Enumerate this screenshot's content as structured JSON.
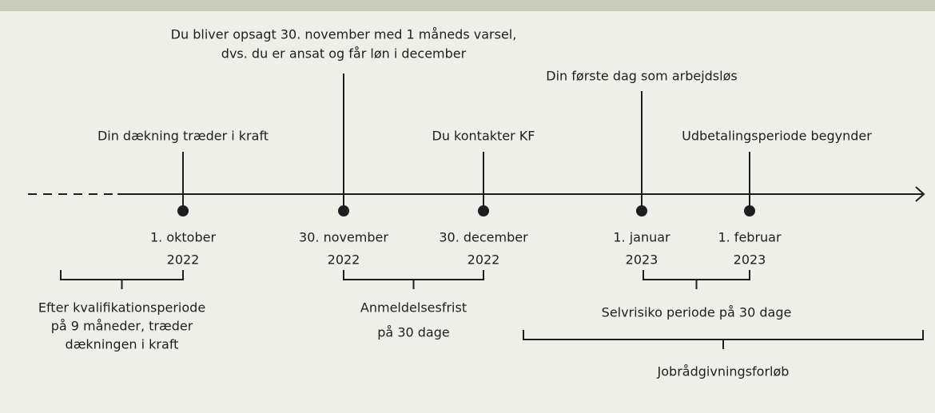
{
  "events": [
    {
      "label": [
        "Din dækning træder i kraft"
      ],
      "date": [
        "1. oktober",
        "2022"
      ]
    },
    {
      "label": [
        "Du bliver opsagt 30. november med 1 måneds varsel,",
        "dvs. du er ansat og får løn i december"
      ],
      "date": [
        "30. november",
        "2022"
      ]
    },
    {
      "label": [
        "Du kontakter KF"
      ],
      "date": [
        "30. december",
        "2022"
      ]
    },
    {
      "label": [
        "Din første dag som arbejdsløs"
      ],
      "date": [
        "1. januar",
        "2023"
      ]
    },
    {
      "label": [
        "Udbetalingsperiode begynder"
      ],
      "date": [
        "1. februar",
        "2023"
      ]
    }
  ],
  "periods": [
    {
      "label": [
        "Efter kvalifikationsperiode",
        "på 9 måneder, træder",
        "dækningen i kraft"
      ]
    },
    {
      "label": [
        "Anmeldelsesfrist",
        "på 30 dage"
      ]
    },
    {
      "label": [
        "Selvrisiko periode på 30 dage"
      ]
    },
    {
      "label": [
        "Jobrådgivningsforløb"
      ]
    }
  ]
}
